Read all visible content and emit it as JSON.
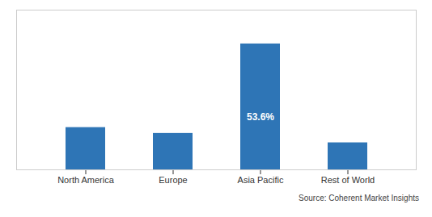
{
  "chart_data": {
    "type": "bar",
    "categories": [
      "North America",
      "Europe",
      "Asia Pacific",
      "Rest of World"
    ],
    "values": [
      18.0,
      15.5,
      53.6,
      11.5
    ],
    "color": "#2E75B6",
    "ylim": [
      0,
      68
    ],
    "tick_labels": "x",
    "grid": false,
    "annotations": [
      {
        "text": "53.6%",
        "category": "Asia Pacific",
        "color": "#ffffff"
      }
    ],
    "caption": "Source: Coherent Market Insights"
  }
}
